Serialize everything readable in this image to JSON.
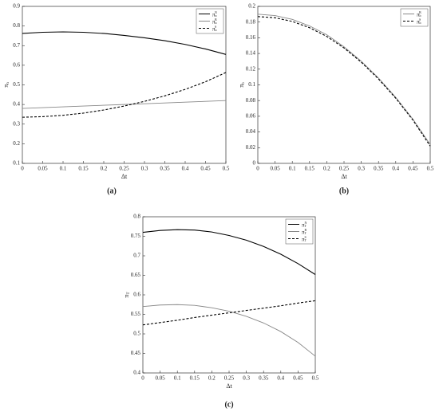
{
  "chart_data": [
    {
      "type": "line",
      "caption": "(a)",
      "xlabel": "Δt",
      "ylabel": "π",
      "ylabel_sub": "n",
      "x": [
        0,
        0.05,
        0.1,
        0.15,
        0.2,
        0.25,
        0.3,
        0.35,
        0.4,
        0.45,
        0.5
      ],
      "xlim": [
        0,
        0.5
      ],
      "xticks": [
        0,
        0.05,
        0.1,
        0.15,
        0.2,
        0.25,
        0.3,
        0.35,
        0.4,
        0.45,
        0.5
      ],
      "ylim": [
        0.1,
        0.9
      ],
      "yticks": [
        0.1,
        0.2,
        0.3,
        0.4,
        0.5,
        0.6,
        0.7,
        0.8,
        0.9
      ],
      "legend": "upper right",
      "series": [
        {
          "name": "π",
          "sub": "n",
          "sup": "N",
          "color": "#000000",
          "linestyle": "solid",
          "values": [
            0.762,
            0.768,
            0.77,
            0.768,
            0.762,
            0.752,
            0.74,
            0.725,
            0.706,
            0.683,
            0.655
          ]
        },
        {
          "name": "π",
          "sub": "n",
          "sup": "B",
          "color": "#888888",
          "linestyle": "solid",
          "values": [
            0.38,
            0.384,
            0.388,
            0.392,
            0.396,
            0.4,
            0.404,
            0.408,
            0.412,
            0.416,
            0.42
          ]
        },
        {
          "name": "π",
          "sub": "n",
          "sup": "S",
          "color": "#000000",
          "linestyle": "dashed",
          "values": [
            0.335,
            0.338,
            0.345,
            0.356,
            0.372,
            0.392,
            0.416,
            0.444,
            0.477,
            0.516,
            0.563
          ]
        }
      ]
    },
    {
      "type": "line",
      "caption": "(b)",
      "xlabel": "Δt",
      "ylabel": "π",
      "ylabel_sub": "b",
      "x": [
        0,
        0.05,
        0.1,
        0.15,
        0.2,
        0.25,
        0.3,
        0.35,
        0.4,
        0.45,
        0.5
      ],
      "xlim": [
        0,
        0.5
      ],
      "xticks": [
        0,
        0.05,
        0.1,
        0.15,
        0.2,
        0.25,
        0.3,
        0.35,
        0.4,
        0.45,
        0.5
      ],
      "ylim": [
        0,
        0.2
      ],
      "yticks": [
        0,
        0.02,
        0.04,
        0.06,
        0.08,
        0.1,
        0.12,
        0.14,
        0.16,
        0.18,
        0.2
      ],
      "legend": "upper right",
      "series": [
        {
          "name": "π",
          "sub": "b",
          "sup": "B",
          "color": "#888888",
          "linestyle": "solid",
          "values": [
            0.19,
            0.1883,
            0.1834,
            0.1751,
            0.1638,
            0.1485,
            0.1301,
            0.1087,
            0.0841,
            0.0562,
            0.024
          ]
        },
        {
          "name": "π",
          "sub": "b",
          "sup": "S",
          "color": "#000000",
          "linestyle": "dashed",
          "values": [
            0.187,
            0.1855,
            0.1808,
            0.1728,
            0.1617,
            0.147,
            0.1289,
            0.1075,
            0.083,
            0.055,
            0.022
          ]
        }
      ]
    },
    {
      "type": "line",
      "caption": "(c)",
      "xlabel": "Δt",
      "ylabel": "π",
      "ylabel_sub": "T",
      "x": [
        0,
        0.05,
        0.1,
        0.15,
        0.2,
        0.25,
        0.3,
        0.35,
        0.4,
        0.45,
        0.5
      ],
      "xlim": [
        0,
        0.5
      ],
      "xticks": [
        0,
        0.05,
        0.1,
        0.15,
        0.2,
        0.25,
        0.3,
        0.35,
        0.4,
        0.45,
        0.5
      ],
      "ylim": [
        0.4,
        0.8
      ],
      "yticks": [
        0.4,
        0.45,
        0.5,
        0.55,
        0.6,
        0.65,
        0.7,
        0.75,
        0.8
      ],
      "legend": "upper right",
      "series": [
        {
          "name": "π",
          "sub": "T",
          "sup": "N",
          "color": "#000000",
          "linestyle": "solid",
          "values": [
            0.76,
            0.765,
            0.767,
            0.766,
            0.761,
            0.752,
            0.74,
            0.724,
            0.704,
            0.68,
            0.652
          ]
        },
        {
          "name": "π",
          "sub": "T",
          "sup": "B",
          "color": "#888888",
          "linestyle": "solid",
          "values": [
            0.57,
            0.574,
            0.575,
            0.573,
            0.567,
            0.558,
            0.545,
            0.528,
            0.506,
            0.478,
            0.443
          ]
        },
        {
          "name": "π",
          "sub": "T",
          "sup": "S",
          "color": "#000000",
          "linestyle": "dashed",
          "values": [
            0.523,
            0.529,
            0.535,
            0.542,
            0.548,
            0.554,
            0.56,
            0.566,
            0.572,
            0.579,
            0.585
          ]
        }
      ]
    }
  ]
}
